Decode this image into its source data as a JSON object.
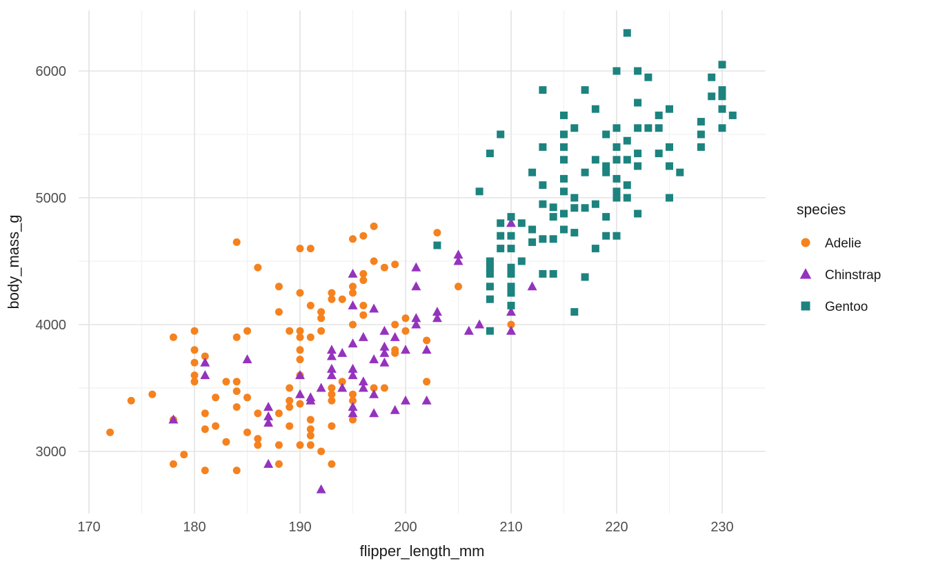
{
  "figure": {
    "background": "#ffffff",
    "panel_background": "#ffffff",
    "grid_major_color": "#e3e3e3",
    "grid_minor_color": "#f1f1f1",
    "tick_text_color": "#4d4d4d",
    "title_text_color": "#1a1a1a"
  },
  "chart_data": {
    "type": "scatter",
    "title": "",
    "xlabel": "flipper_length_mm",
    "ylabel": "body_mass_g",
    "xlim": [
      169,
      234
    ],
    "ylim": [
      2520,
      6480
    ],
    "x_ticks": [
      170,
      180,
      190,
      200,
      210,
      220,
      230
    ],
    "y_ticks": [
      3000,
      4000,
      5000,
      6000
    ],
    "x_minor_ticks": [
      175,
      185,
      195,
      205,
      215,
      225
    ],
    "y_minor_ticks": [
      3500,
      4500,
      5500
    ],
    "grid": true,
    "legend": {
      "title": "species",
      "position": "right"
    },
    "series": [
      {
        "name": "Adelie",
        "marker": "circle",
        "color": "#f5821e",
        "points": [
          [
            172,
            3150
          ],
          [
            174,
            3400
          ],
          [
            176,
            3450
          ],
          [
            178,
            3900
          ],
          [
            178,
            3250
          ],
          [
            178,
            2900
          ],
          [
            179,
            2975
          ],
          [
            180,
            3950
          ],
          [
            180,
            3800
          ],
          [
            180,
            3700
          ],
          [
            180,
            3600
          ],
          [
            180,
            3550
          ],
          [
            181,
            3750
          ],
          [
            181,
            3300
          ],
          [
            181,
            3175
          ],
          [
            181,
            2850
          ],
          [
            182,
            3425
          ],
          [
            182,
            3200
          ],
          [
            183,
            3550
          ],
          [
            183,
            3075
          ],
          [
            184,
            4650
          ],
          [
            184,
            3900
          ],
          [
            184,
            3550
          ],
          [
            184,
            3475
          ],
          [
            184,
            3350
          ],
          [
            184,
            2850
          ],
          [
            185,
            3950
          ],
          [
            185,
            3425
          ],
          [
            185,
            3150
          ],
          [
            186,
            4450
          ],
          [
            186,
            3300
          ],
          [
            186,
            3100
          ],
          [
            186,
            3050
          ],
          [
            188,
            4300
          ],
          [
            188,
            4100
          ],
          [
            188,
            3300
          ],
          [
            188,
            3050
          ],
          [
            188,
            2900
          ],
          [
            189,
            3950
          ],
          [
            189,
            3500
          ],
          [
            189,
            3400
          ],
          [
            189,
            3350
          ],
          [
            189,
            3200
          ],
          [
            190,
            4600
          ],
          [
            190,
            4250
          ],
          [
            190,
            3950
          ],
          [
            190,
            3900
          ],
          [
            190,
            3800
          ],
          [
            190,
            3725
          ],
          [
            190,
            3600
          ],
          [
            190,
            3375
          ],
          [
            190,
            3050
          ],
          [
            191,
            4600
          ],
          [
            191,
            4150
          ],
          [
            191,
            3900
          ],
          [
            191,
            3250
          ],
          [
            191,
            3175
          ],
          [
            191,
            3125
          ],
          [
            191,
            3050
          ],
          [
            192,
            4100
          ],
          [
            192,
            4050
          ],
          [
            192,
            3950
          ],
          [
            192,
            3000
          ],
          [
            193,
            4250
          ],
          [
            193,
            4200
          ],
          [
            193,
            3500
          ],
          [
            193,
            3450
          ],
          [
            193,
            3400
          ],
          [
            193,
            3200
          ],
          [
            193,
            2900
          ],
          [
            194,
            4200
          ],
          [
            194,
            3550
          ],
          [
            195,
            4675
          ],
          [
            195,
            4300
          ],
          [
            195,
            4250
          ],
          [
            195,
            4000
          ],
          [
            195,
            3450
          ],
          [
            195,
            3400
          ],
          [
            195,
            3250
          ],
          [
            196,
            4700
          ],
          [
            196,
            4400
          ],
          [
            196,
            4350
          ],
          [
            196,
            4150
          ],
          [
            196,
            4075
          ],
          [
            197,
            4775
          ],
          [
            197,
            4500
          ],
          [
            197,
            3500
          ],
          [
            198,
            4450
          ],
          [
            198,
            3500
          ],
          [
            199,
            4475
          ],
          [
            199,
            4000
          ],
          [
            199,
            3800
          ],
          [
            199,
            3775
          ],
          [
            200,
            4050
          ],
          [
            200,
            3950
          ],
          [
            202,
            3875
          ],
          [
            202,
            3550
          ],
          [
            203,
            4725
          ],
          [
            205,
            4300
          ],
          [
            210,
            4000
          ]
        ]
      },
      {
        "name": "Chinstrap",
        "marker": "triangle",
        "color": "#9433bd",
        "points": [
          [
            178,
            3250
          ],
          [
            181,
            3700
          ],
          [
            181,
            3600
          ],
          [
            185,
            3725
          ],
          [
            187,
            3350
          ],
          [
            187,
            3275
          ],
          [
            187,
            3225
          ],
          [
            187,
            2900
          ],
          [
            190,
            3600
          ],
          [
            190,
            3450
          ],
          [
            191,
            3425
          ],
          [
            191,
            3400
          ],
          [
            192,
            3500
          ],
          [
            192,
            2700
          ],
          [
            193,
            3800
          ],
          [
            193,
            3750
          ],
          [
            193,
            3650
          ],
          [
            193,
            3600
          ],
          [
            194,
            3775
          ],
          [
            194,
            3500
          ],
          [
            195,
            4400
          ],
          [
            195,
            4150
          ],
          [
            195,
            3850
          ],
          [
            195,
            3650
          ],
          [
            195,
            3600
          ],
          [
            195,
            3350
          ],
          [
            195,
            3300
          ],
          [
            196,
            3900
          ],
          [
            196,
            3550
          ],
          [
            196,
            3500
          ],
          [
            197,
            4125
          ],
          [
            197,
            3725
          ],
          [
            197,
            3450
          ],
          [
            197,
            3300
          ],
          [
            198,
            3950
          ],
          [
            198,
            3825
          ],
          [
            198,
            3775
          ],
          [
            198,
            3700
          ],
          [
            199,
            3900
          ],
          [
            199,
            3325
          ],
          [
            200,
            3800
          ],
          [
            200,
            3400
          ],
          [
            201,
            4450
          ],
          [
            201,
            4300
          ],
          [
            201,
            4050
          ],
          [
            201,
            4000
          ],
          [
            202,
            3800
          ],
          [
            202,
            3400
          ],
          [
            203,
            4100
          ],
          [
            203,
            4050
          ],
          [
            205,
            4550
          ],
          [
            205,
            4500
          ],
          [
            206,
            3950
          ],
          [
            207,
            4000
          ],
          [
            210,
            4800
          ],
          [
            210,
            4100
          ],
          [
            210,
            3950
          ],
          [
            212,
            4300
          ]
        ]
      },
      {
        "name": "Gentoo",
        "marker": "square",
        "color": "#1d837f",
        "points": [
          [
            203,
            4625
          ],
          [
            207,
            5050
          ],
          [
            208,
            5350
          ],
          [
            208,
            4500
          ],
          [
            208,
            4450
          ],
          [
            208,
            4400
          ],
          [
            208,
            4300
          ],
          [
            208,
            4200
          ],
          [
            208,
            3950
          ],
          [
            209,
            5500
          ],
          [
            209,
            4800
          ],
          [
            209,
            4700
          ],
          [
            209,
            4600
          ],
          [
            210,
            4850
          ],
          [
            210,
            4700
          ],
          [
            210,
            4600
          ],
          [
            210,
            4450
          ],
          [
            210,
            4400
          ],
          [
            210,
            4300
          ],
          [
            210,
            4250
          ],
          [
            210,
            4150
          ],
          [
            211,
            4800
          ],
          [
            211,
            4500
          ],
          [
            212,
            5200
          ],
          [
            212,
            4750
          ],
          [
            212,
            4650
          ],
          [
            213,
            5850
          ],
          [
            213,
            5400
          ],
          [
            213,
            5100
          ],
          [
            213,
            4950
          ],
          [
            213,
            4675
          ],
          [
            213,
            4400
          ],
          [
            214,
            4925
          ],
          [
            214,
            4850
          ],
          [
            214,
            4675
          ],
          [
            214,
            4400
          ],
          [
            215,
            5650
          ],
          [
            215,
            5500
          ],
          [
            215,
            5400
          ],
          [
            215,
            5300
          ],
          [
            215,
            5150
          ],
          [
            215,
            5050
          ],
          [
            215,
            4875
          ],
          [
            215,
            4750
          ],
          [
            216,
            5550
          ],
          [
            216,
            5000
          ],
          [
            216,
            4920
          ],
          [
            216,
            4725
          ],
          [
            216,
            4100
          ],
          [
            217,
            5850
          ],
          [
            217,
            5200
          ],
          [
            217,
            4920
          ],
          [
            217,
            4375
          ],
          [
            218,
            5700
          ],
          [
            218,
            5300
          ],
          [
            218,
            4950
          ],
          [
            218,
            4600
          ],
          [
            219,
            5500
          ],
          [
            219,
            5250
          ],
          [
            219,
            5200
          ],
          [
            219,
            4850
          ],
          [
            219,
            4700
          ],
          [
            220,
            6000
          ],
          [
            220,
            5550
          ],
          [
            220,
            5400
          ],
          [
            220,
            5300
          ],
          [
            220,
            5150
          ],
          [
            220,
            5050
          ],
          [
            220,
            5000
          ],
          [
            220,
            4700
          ],
          [
            221,
            6300
          ],
          [
            221,
            5450
          ],
          [
            221,
            5300
          ],
          [
            221,
            5100
          ],
          [
            221,
            5000
          ],
          [
            222,
            6000
          ],
          [
            222,
            5750
          ],
          [
            222,
            5550
          ],
          [
            222,
            5350
          ],
          [
            222,
            5250
          ],
          [
            222,
            4875
          ],
          [
            223,
            5950
          ],
          [
            223,
            5550
          ],
          [
            224,
            5650
          ],
          [
            224,
            5550
          ],
          [
            224,
            5350
          ],
          [
            225,
            5700
          ],
          [
            225,
            5400
          ],
          [
            225,
            5250
          ],
          [
            225,
            5000
          ],
          [
            226,
            5200
          ],
          [
            228,
            5600
          ],
          [
            228,
            5500
          ],
          [
            228,
            5400
          ],
          [
            229,
            5950
          ],
          [
            229,
            5800
          ],
          [
            230,
            6050
          ],
          [
            230,
            5850
          ],
          [
            230,
            5800
          ],
          [
            230,
            5700
          ],
          [
            230,
            5550
          ],
          [
            231,
            5650
          ]
        ]
      }
    ]
  }
}
